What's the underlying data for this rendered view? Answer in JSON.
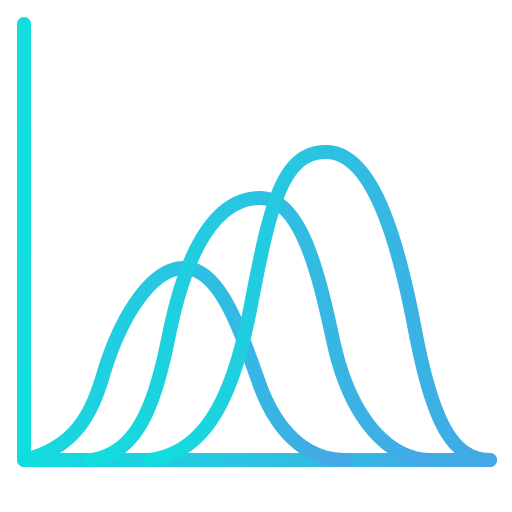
{
  "icon": {
    "name": "distribution-curves-icon",
    "gradient": {
      "start_color": "#12DDDD",
      "end_color": "#45A7E6"
    },
    "curve_count": 3
  }
}
